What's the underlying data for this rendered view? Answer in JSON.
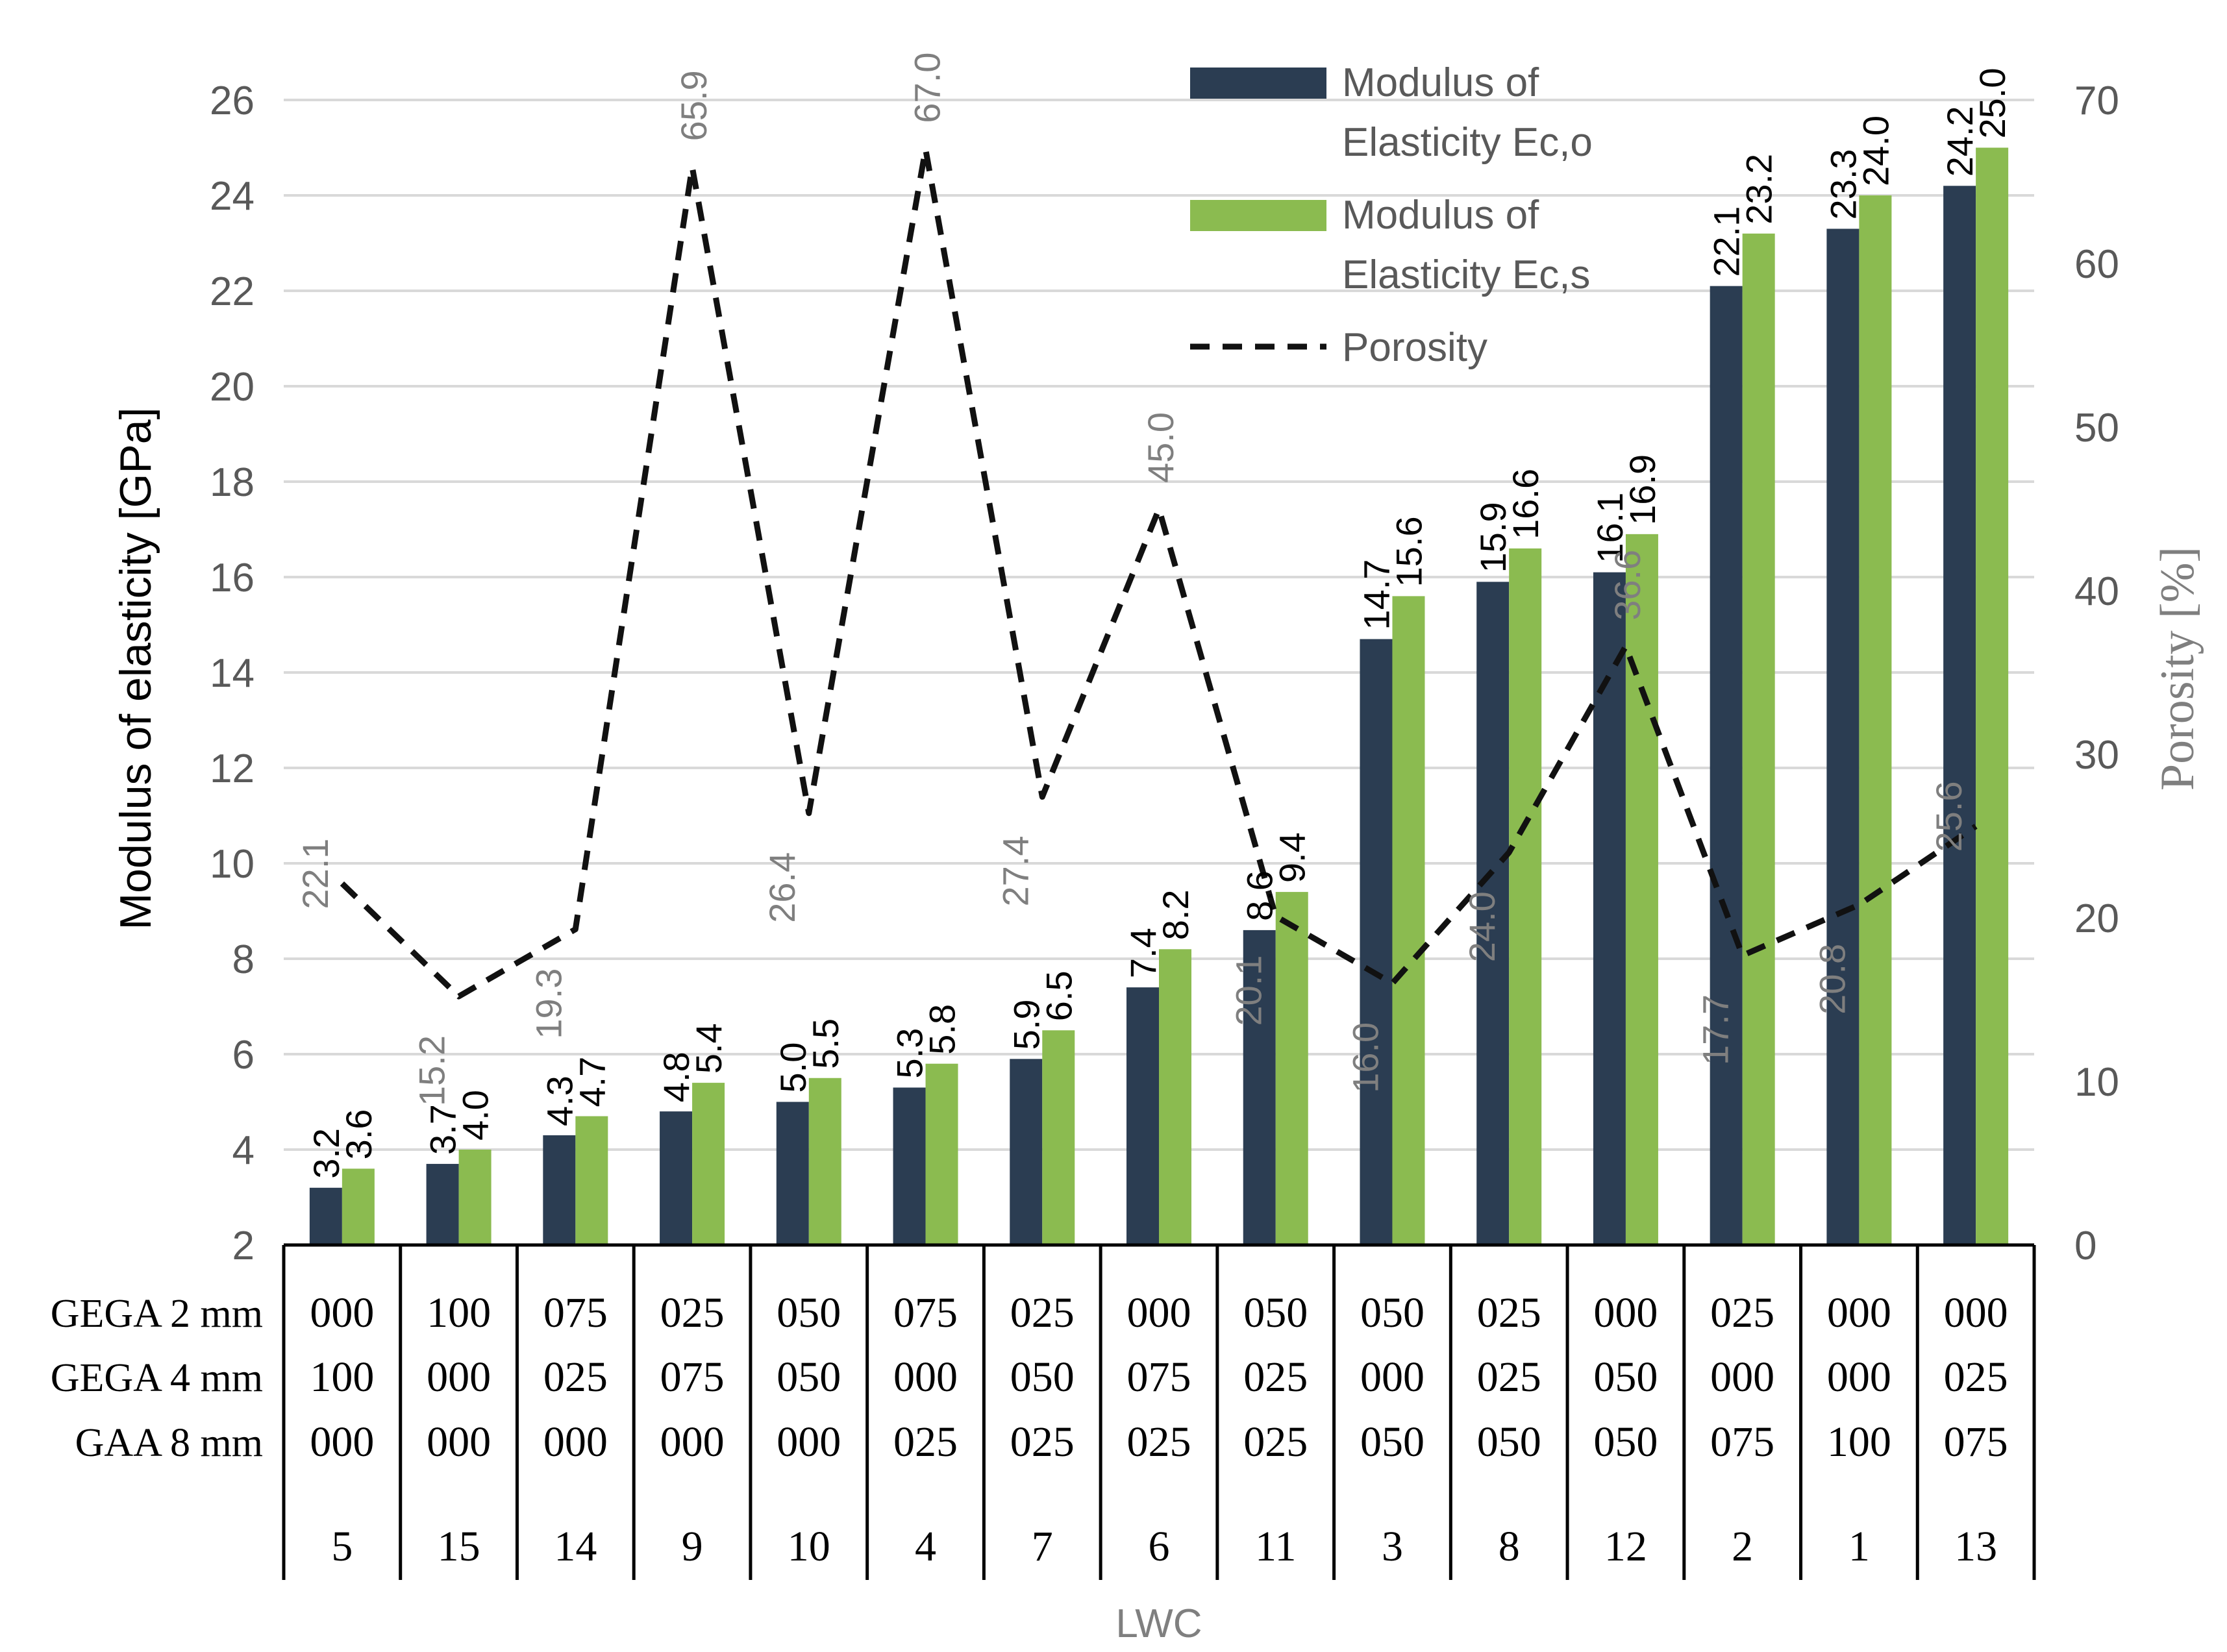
{
  "chart_data": {
    "type": "bar",
    "categories": [
      "5",
      "15",
      "14",
      "9",
      "10",
      "4",
      "7",
      "6",
      "11",
      "3",
      "8",
      "12",
      "2",
      "1",
      "13"
    ],
    "xlabel": "LWC",
    "ylabel": "Modulus of elasticity [GPa]",
    "y2label": "Porosity [%]",
    "ylim": [
      2,
      26
    ],
    "y2lim": [
      0,
      70
    ],
    "yticks": [
      "2",
      "4",
      "6",
      "8",
      "10",
      "12",
      "14",
      "16",
      "18",
      "20",
      "22",
      "24",
      "26"
    ],
    "y2ticks": [
      "0",
      "10",
      "20",
      "30",
      "40",
      "50",
      "60",
      "70"
    ],
    "grid": true,
    "legend_position": "top-right",
    "legend": [
      "Modulus of Elasticity Ec,o",
      "Modulus of Elasticity Ec,s",
      "Porosity"
    ],
    "colors": {
      "ec_o": "#2b3d52",
      "ec_s": "#8bbb50",
      "porosity": "#111111",
      "axis_text": "#595959",
      "grid": "#d9d9d9"
    },
    "series": [
      {
        "name": "Modulus of Elasticity Ec,o",
        "type": "bar",
        "axis": "left",
        "values": [
          3.2,
          3.7,
          4.3,
          4.8,
          5.0,
          5.3,
          5.9,
          7.4,
          8.6,
          14.7,
          15.9,
          16.1,
          22.1,
          23.3,
          24.2
        ],
        "labels": [
          "3.2",
          "3.7",
          "4.3",
          "4.8",
          "5.0",
          "5.3",
          "5.9",
          "7.4",
          "8.6",
          "14.7",
          "15.9",
          "16.1",
          "22.1",
          "23.3",
          "24.2"
        ]
      },
      {
        "name": "Modulus of Elasticity Ec,s",
        "type": "bar",
        "axis": "left",
        "values": [
          3.6,
          4.0,
          4.7,
          5.4,
          5.5,
          5.8,
          6.5,
          8.2,
          9.4,
          15.6,
          16.6,
          16.9,
          23.2,
          24.0,
          25.0
        ],
        "labels": [
          "3.6",
          "4.0",
          "4.7",
          "5.4",
          "5.5",
          "5.8",
          "6.5",
          "8.2",
          "9.4",
          "15.6",
          "16.6",
          "16.9",
          "23.2",
          "24.0",
          "25.0"
        ]
      },
      {
        "name": "Porosity",
        "type": "line",
        "style": "dashed",
        "axis": "right",
        "values": [
          22.1,
          15.2,
          19.3,
          65.9,
          26.4,
          67.0,
          27.4,
          45.0,
          20.1,
          16.0,
          24.0,
          36.6,
          17.7,
          20.8,
          25.6
        ],
        "labels": [
          "22.1",
          "15.2",
          "19.3",
          "65.9",
          "26.4",
          "67.0",
          "27.4",
          "45.0",
          "20.1",
          "16.0",
          "24.0",
          "36.6",
          "17.7",
          "20.8",
          "25.6"
        ]
      }
    ],
    "table": {
      "row_labels": [
        "GEGA 2 mm",
        "GEGA 4 mm",
        "GAA 8 mm"
      ],
      "rows": [
        [
          "000",
          "100",
          "075",
          "025",
          "050",
          "075",
          "025",
          "000",
          "050",
          "050",
          "025",
          "000",
          "025",
          "000",
          "000"
        ],
        [
          "100",
          "000",
          "025",
          "075",
          "050",
          "000",
          "050",
          "075",
          "025",
          "000",
          "025",
          "050",
          "000",
          "000",
          "025"
        ],
        [
          "000",
          "000",
          "000",
          "000",
          "000",
          "025",
          "025",
          "025",
          "025",
          "050",
          "050",
          "050",
          "075",
          "100",
          "075"
        ]
      ]
    }
  }
}
